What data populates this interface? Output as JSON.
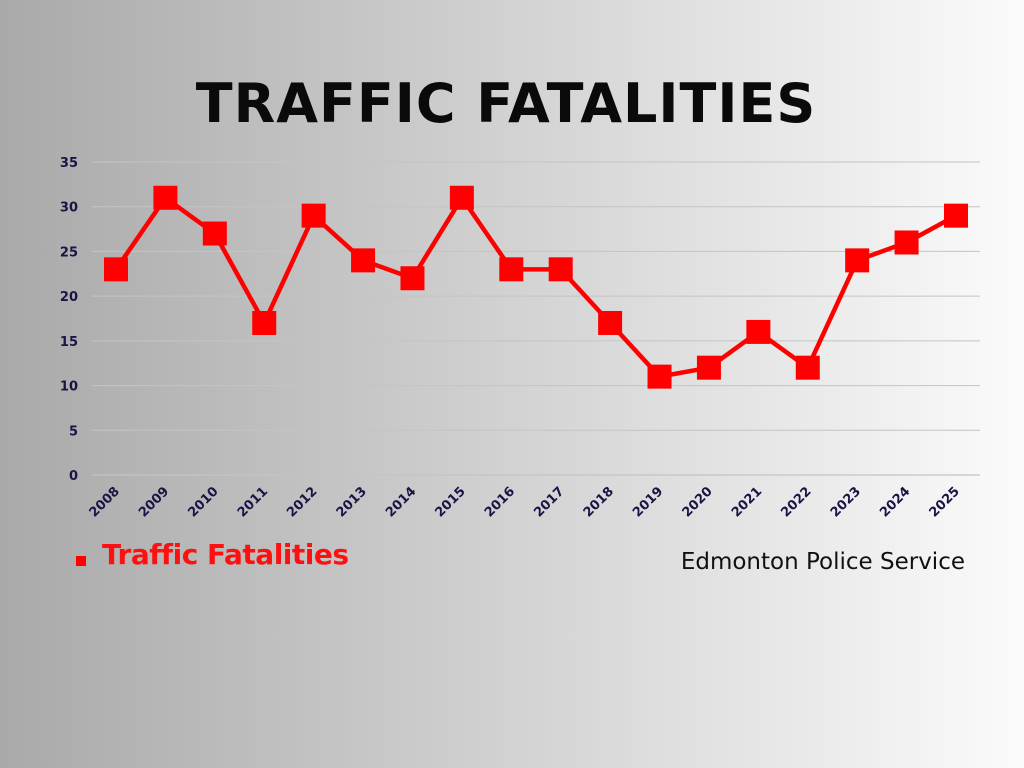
{
  "title": "TRAFFIC FATALITIES",
  "source_credit": "Edmonton Police Service",
  "colors": {
    "series": "#ff0000",
    "grid": "#c4c4c4",
    "tick_text": "#1a1446"
  },
  "chart_data": {
    "type": "line",
    "title": "TRAFFIC FATALITIES",
    "xlabel": "",
    "ylabel": "",
    "categories": [
      "2008",
      "2009",
      "2010",
      "2011",
      "2012",
      "2013",
      "2014",
      "2015",
      "2016",
      "2017",
      "2018",
      "2019",
      "2020",
      "2021",
      "2022",
      "2023",
      "2024",
      "2025"
    ],
    "series": [
      {
        "name": "Traffic Fatalities",
        "marker": "square",
        "values": [
          23,
          31,
          27,
          17,
          29,
          24,
          22,
          31,
          23,
          23,
          17,
          11,
          12,
          16,
          12,
          24,
          26,
          29
        ]
      }
    ],
    "ylim": [
      0,
      35
    ],
    "yticks": [
      0,
      5,
      10,
      15,
      20,
      25,
      30,
      35
    ],
    "grid": true,
    "legend": "bottom-left"
  }
}
